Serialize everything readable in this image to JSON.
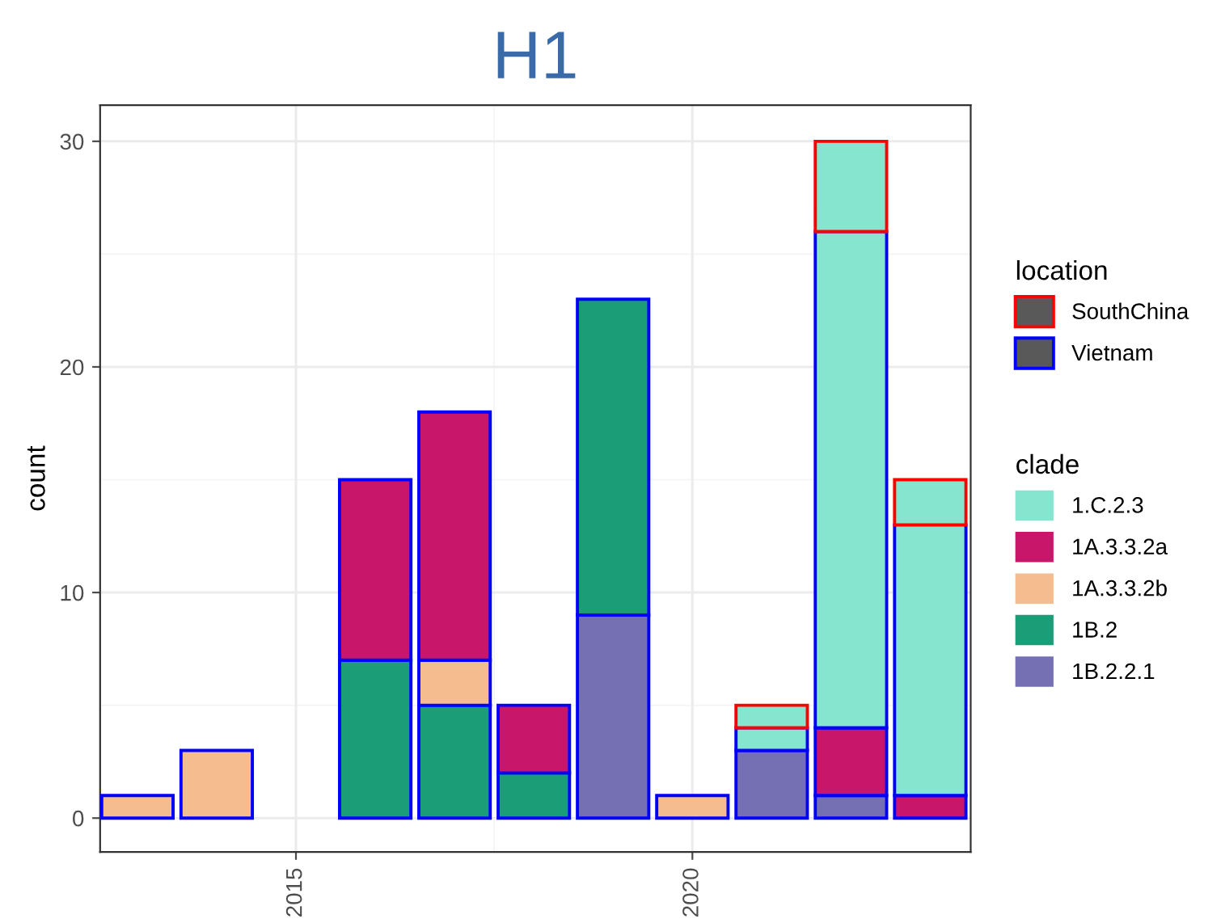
{
  "chart_data": {
    "type": "bar",
    "title": "H1",
    "ylabel": "count",
    "stacked": true,
    "x": [
      2013,
      2014,
      2016,
      2017,
      2018,
      2019,
      2020,
      2021,
      2022,
      2023
    ],
    "xlim": [
      2012.53,
      2023.51
    ],
    "xticks": [
      2015,
      2020
    ],
    "ylim": [
      -1.5,
      31.6
    ],
    "yticks": [
      0,
      10,
      20,
      30
    ],
    "grid": true,
    "legend": "right",
    "legend_title": [
      "location",
      "clade"
    ],
    "series": [
      {
        "name": "Vietnam",
        "type": "other",
        "color": "#0000ff",
        "values": [
          null,
          null,
          null,
          null,
          null,
          null,
          null,
          null,
          null,
          null
        ]
      },
      {
        "name": "1B.2.2.1",
        "color": "#7570b3",
        "values": [
          null,
          null,
          null,
          null,
          null,
          9,
          null,
          3,
          1,
          null
        ]
      },
      {
        "name": "1B.2",
        "color": "#1b9e77",
        "values": [
          null,
          null,
          7,
          5,
          2,
          14,
          null,
          null,
          null,
          null
        ]
      },
      {
        "name": "1A.3.3.2b",
        "color": "#f5bd8f",
        "values": [
          1,
          3,
          null,
          2,
          null,
          null,
          1,
          null,
          null,
          null
        ]
      },
      {
        "name": "1A.3.3.2a",
        "color": "#c8176b",
        "values": [
          null,
          null,
          8,
          11,
          3,
          null,
          null,
          null,
          3,
          1
        ]
      },
      {
        "name": "1.C.2.3",
        "color": "#86e5cf",
        "values": [
          null,
          null,
          null,
          null,
          null,
          null,
          null,
          1,
          22,
          12
        ]
      },
      {
        "name": "SouthChina",
        "type": "other",
        "color": "#ff0000",
        "values": [
          null,
          null,
          null,
          null,
          null,
          null,
          null,
          null,
          null,
          null
        ]
      },
      {
        "color": "#86e5cf",
        "values": [
          null,
          null,
          null,
          null,
          null,
          null,
          null,
          1,
          4,
          2
        ]
      }
    ]
  }
}
